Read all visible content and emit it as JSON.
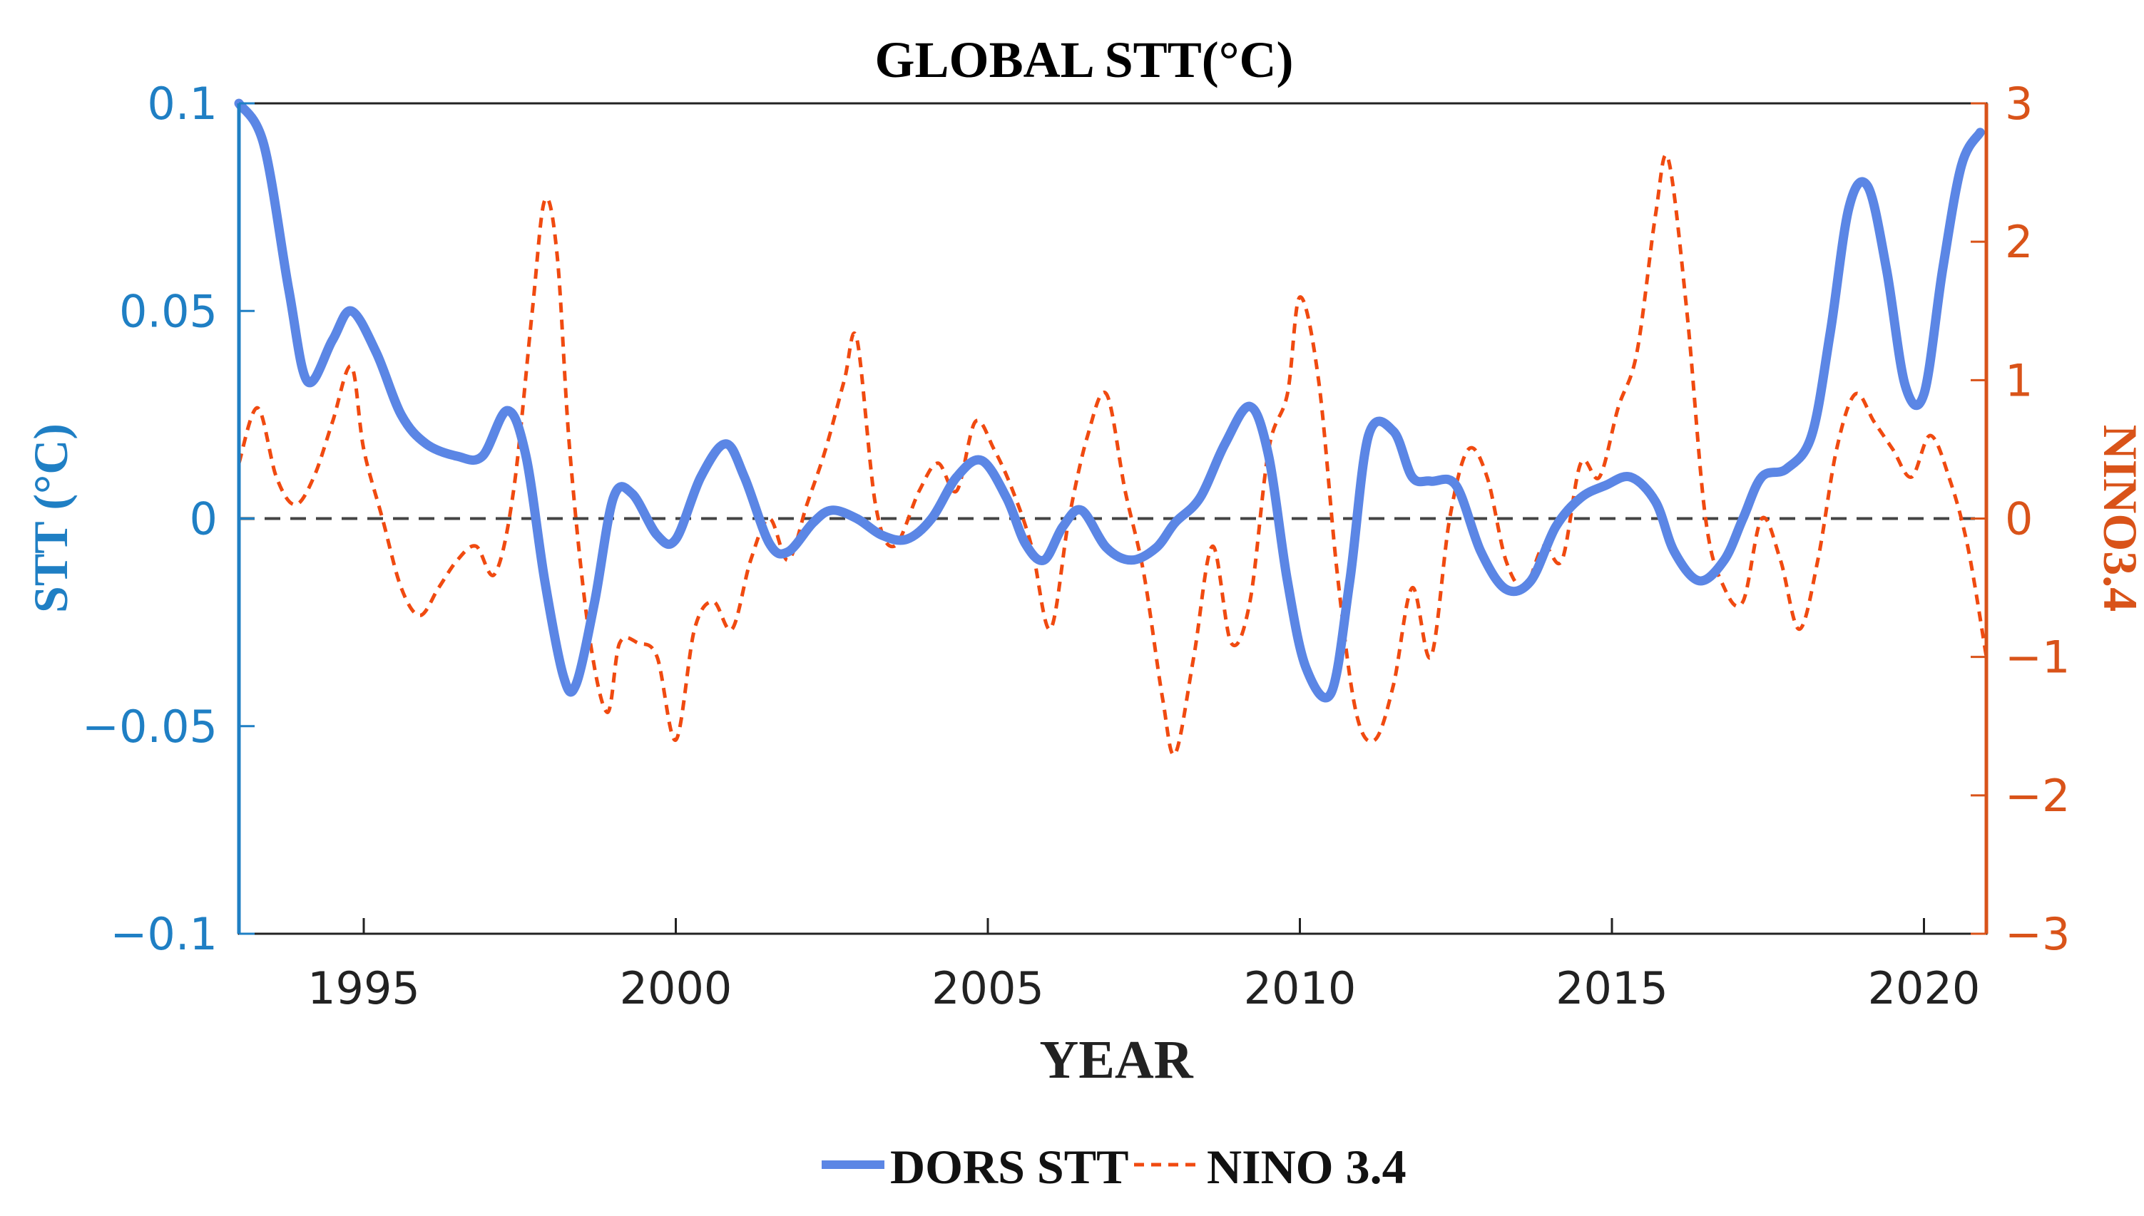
{
  "chart_data": {
    "type": "line",
    "title": "GLOBAL STT(°C)",
    "xlabel": "YEAR",
    "ylabel_left": "STT (°C)",
    "ylabel_right": "NINO3.4",
    "xlim": [
      1993,
      2021
    ],
    "ylim_left": [
      -0.1,
      0.1
    ],
    "ylim_right": [
      -3,
      3
    ],
    "x_ticks": [
      1995,
      2000,
      2005,
      2010,
      2015,
      2020
    ],
    "y_ticks_left": [
      "0.1",
      "0.05",
      "0",
      "−0.05",
      "−0.1"
    ],
    "y_ticks_left_values": [
      0.1,
      0.05,
      0,
      -0.05,
      -0.1
    ],
    "y_ticks_right": [
      "3",
      "2",
      "1",
      "0",
      "−1",
      "−2",
      "−3"
    ],
    "y_ticks_right_values": [
      3,
      2,
      1,
      0,
      -1,
      -2,
      -3
    ],
    "zero_line": true,
    "colors": {
      "left_axis": "#1f7fc4",
      "right_axis": "#d95319",
      "dors": "#5b86e5",
      "nino": "#f04a10",
      "zero": "#444444"
    },
    "series": [
      {
        "name": "DORS STT",
        "axis": "left",
        "style": "solid",
        "x": [
          1993.0,
          1993.4,
          1993.8,
          1994.1,
          1994.5,
          1994.8,
          1995.2,
          1995.6,
          1996.0,
          1996.5,
          1996.9,
          1997.3,
          1997.6,
          1997.9,
          1998.2,
          1998.4,
          1998.7,
          1999.0,
          1999.3,
          1999.7,
          2000.0,
          2000.4,
          2000.8,
          2001.1,
          2001.5,
          2001.8,
          2002.2,
          2002.5,
          2002.9,
          2003.3,
          2003.7,
          2004.1,
          2004.5,
          2004.9,
          2005.3,
          2005.6,
          2005.9,
          2006.2,
          2006.5,
          2006.9,
          2007.3,
          2007.7,
          2008.0,
          2008.4,
          2008.8,
          2009.2,
          2009.5,
          2009.8,
          2010.1,
          2010.5,
          2010.8,
          2011.1,
          2011.5,
          2011.8,
          2012.1,
          2012.5,
          2012.9,
          2013.3,
          2013.7,
          2014.1,
          2014.5,
          2014.9,
          2015.3,
          2015.7,
          2016.0,
          2016.4,
          2016.8,
          2017.1,
          2017.4,
          2017.8,
          2018.2,
          2018.5,
          2018.8,
          2019.1,
          2019.4,
          2019.7,
          2020.0,
          2020.3,
          2020.6,
          2020.9
        ],
        "y": [
          0.1,
          0.09,
          0.055,
          0.033,
          0.043,
          0.05,
          0.04,
          0.025,
          0.018,
          0.015,
          0.015,
          0.026,
          0.015,
          -0.015,
          -0.038,
          -0.04,
          -0.02,
          0.005,
          0.006,
          -0.004,
          -0.005,
          0.01,
          0.018,
          0.01,
          -0.006,
          -0.008,
          -0.001,
          0.002,
          0.0,
          -0.004,
          -0.005,
          0.0,
          0.01,
          0.014,
          0.005,
          -0.006,
          -0.01,
          -0.002,
          0.002,
          -0.007,
          -0.01,
          -0.007,
          -0.001,
          0.005,
          0.018,
          0.027,
          0.015,
          -0.015,
          -0.036,
          -0.042,
          -0.015,
          0.02,
          0.021,
          0.01,
          0.009,
          0.008,
          -0.008,
          -0.017,
          -0.015,
          -0.002,
          0.005,
          0.008,
          0.01,
          0.004,
          -0.008,
          -0.015,
          -0.01,
          0.0,
          0.01,
          0.012,
          0.02,
          0.045,
          0.075,
          0.08,
          0.06,
          0.032,
          0.03,
          0.06,
          0.085,
          0.093
        ]
      },
      {
        "name": "NINO 3.4",
        "axis": "right",
        "style": "dashed",
        "x": [
          1993.0,
          1993.3,
          1993.6,
          1993.9,
          1994.2,
          1994.5,
          1994.8,
          1995.0,
          1995.3,
          1995.6,
          1995.9,
          1996.2,
          1996.5,
          1996.8,
          1997.1,
          1997.4,
          1997.7,
          1997.9,
          1998.1,
          1998.3,
          1998.6,
          1998.9,
          1999.1,
          1999.4,
          1999.7,
          2000.0,
          2000.3,
          2000.6,
          2000.9,
          2001.2,
          2001.5,
          2001.8,
          2002.1,
          2002.4,
          2002.7,
          2002.9,
          2003.2,
          2003.5,
          2003.9,
          2004.2,
          2004.5,
          2004.8,
          2005.1,
          2005.4,
          2005.7,
          2006.0,
          2006.3,
          2006.6,
          2006.9,
          2007.2,
          2007.5,
          2007.8,
          2008.0,
          2008.3,
          2008.6,
          2008.9,
          2009.2,
          2009.5,
          2009.8,
          2010.0,
          2010.3,
          2010.6,
          2010.9,
          2011.2,
          2011.5,
          2011.8,
          2012.1,
          2012.4,
          2012.7,
          2013.0,
          2013.3,
          2013.6,
          2013.9,
          2014.2,
          2014.5,
          2014.8,
          2015.1,
          2015.4,
          2015.7,
          2015.9,
          2016.2,
          2016.5,
          2016.8,
          2017.1,
          2017.4,
          2017.7,
          2018.0,
          2018.3,
          2018.6,
          2018.9,
          2019.2,
          2019.5,
          2019.8,
          2020.1,
          2020.4,
          2020.7,
          2021.0
        ],
        "y": [
          0.4,
          0.8,
          0.3,
          0.1,
          0.3,
          0.7,
          1.1,
          0.5,
          0.0,
          -0.5,
          -0.7,
          -0.5,
          -0.3,
          -0.2,
          -0.4,
          0.2,
          1.5,
          2.3,
          1.9,
          0.5,
          -0.8,
          -1.4,
          -0.9,
          -0.9,
          -1.0,
          -1.6,
          -0.8,
          -0.6,
          -0.8,
          -0.3,
          0.0,
          -0.3,
          0.1,
          0.5,
          1.0,
          1.3,
          0.1,
          -0.2,
          0.2,
          0.4,
          0.2,
          0.7,
          0.5,
          0.2,
          -0.2,
          -0.8,
          0.0,
          0.6,
          0.9,
          0.2,
          -0.4,
          -1.3,
          -1.7,
          -1.0,
          -0.2,
          -0.9,
          -0.6,
          0.5,
          0.9,
          1.6,
          1.0,
          -0.4,
          -1.4,
          -1.6,
          -1.2,
          -0.5,
          -1.0,
          0.0,
          0.5,
          0.3,
          -0.3,
          -0.5,
          -0.2,
          -0.3,
          0.4,
          0.3,
          0.8,
          1.2,
          2.2,
          2.6,
          1.5,
          0.0,
          -0.5,
          -0.6,
          0.0,
          -0.3,
          -0.8,
          -0.3,
          0.5,
          0.9,
          0.7,
          0.5,
          0.3,
          0.6,
          0.3,
          -0.2,
          -1.0
        ]
      }
    ],
    "legend": [
      "DORS STT",
      "NINO 3.4"
    ],
    "legend_position": "bottom-center"
  }
}
